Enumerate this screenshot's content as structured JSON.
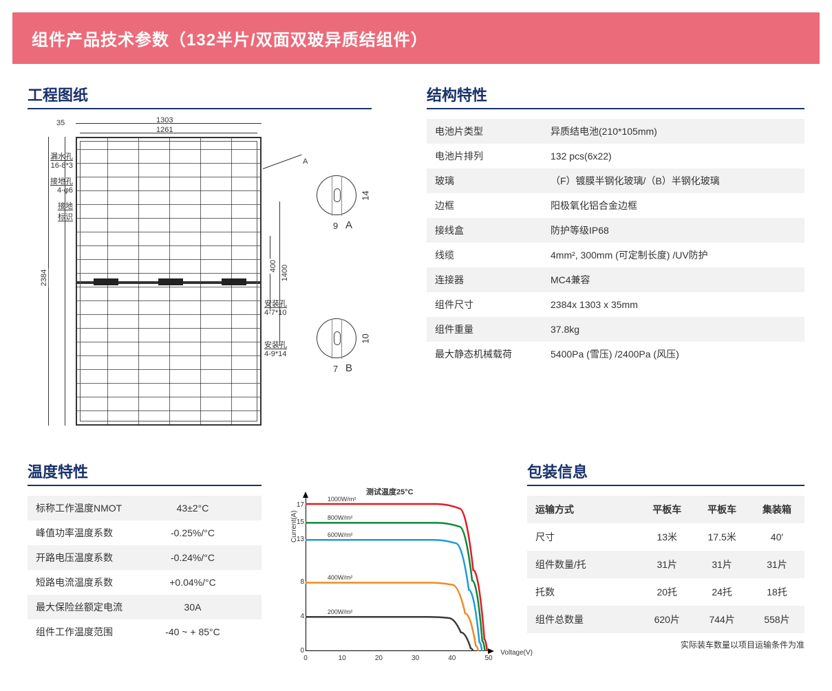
{
  "banner": {
    "title": "组件产品技术参数（132半片/双面双玻异质结组件）"
  },
  "sections": {
    "drawing": "工程图纸",
    "specs": "结构特性",
    "temp": "温度特性",
    "pack": "包装信息"
  },
  "colors": {
    "banner_bg": "#ec6b7a",
    "heading": "#18306b",
    "zebra": "#f2f2f3",
    "text": "#333333",
    "axis": "#000000"
  },
  "drawing": {
    "dims": {
      "frame_depth": "35",
      "width_outer": "1303",
      "width_inner": "1261",
      "height_outer": "2384",
      "gap_mid": "400",
      "span_mid": "1400"
    },
    "labels": {
      "drain_hole": "漏水孔",
      "drain_hole_spec": "16-8*3",
      "ground_hole": "接地孔",
      "ground_hole_spec": "4-φ6",
      "ground_mark": "接地",
      "ground_mark2": "标识",
      "mount_hole1": "安装孔",
      "mount_hole1_spec": "4-7*10",
      "mount_hole2": "安装孔",
      "mount_hole2_spec": "4-9*14"
    },
    "details": {
      "A": {
        "w": "9",
        "h": "14"
      },
      "B": {
        "w": "7",
        "h": "10"
      }
    }
  },
  "specs": [
    {
      "key": "电池片类型",
      "val": "异质结电池(210*105mm)"
    },
    {
      "key": "电池片排列",
      "val": "132 pcs(6x22)"
    },
    {
      "key": "玻璃",
      "val": "（F）镀膜半钢化玻璃/（B）半钢化玻璃"
    },
    {
      "key": "边框",
      "val": "阳极氧化铝合金边框"
    },
    {
      "key": "接线盒",
      "val": "防护等级IP68"
    },
    {
      "key": "线缆",
      "val": "4mm², 300mm (可定制长度) /UV防护"
    },
    {
      "key": "连接器",
      "val": "MC4兼容"
    },
    {
      "key": "组件尺寸",
      "val": "2384x 1303 x 35mm"
    },
    {
      "key": "组件重量",
      "val": "37.8kg"
    },
    {
      "key": "最大静态机械载荷",
      "val": "5400Pa (雪压) /2400Pa (风压)"
    }
  ],
  "temp": [
    {
      "key": "标称工作温度NMOT",
      "val": "43±2°C"
    },
    {
      "key": "峰值功率温度系数",
      "val": "-0.25%/°C"
    },
    {
      "key": "开路电压温度系数",
      "val": "-0.24%/°C"
    },
    {
      "key": "短路电流温度系数",
      "val": "+0.04%/°C"
    },
    {
      "key": "最大保险丝额定电流",
      "val": "30A"
    },
    {
      "key": "组件工作温度范围",
      "val": "-40 ~ + 85°C"
    }
  ],
  "iv_chart": {
    "title": "测试温度25°C",
    "ylabel": "Current(A)",
    "xlabel": "Voltage(V)",
    "xlim": [
      0,
      50
    ],
    "ylim": [
      0,
      18
    ],
    "xticks": [
      0,
      10,
      20,
      30,
      40,
      50
    ],
    "yticks": [
      0,
      4,
      8,
      13,
      15,
      17
    ],
    "line_width": 2.5,
    "background_color": "#ffffff",
    "axis_color": "#000000",
    "series": [
      {
        "label": "1000W/m²",
        "color": "#e11b22",
        "isc": 17.2,
        "knee_v": 42,
        "voc": 49.6
      },
      {
        "label": "800W/m²",
        "color": "#0a8a3a",
        "isc": 15.0,
        "knee_v": 42,
        "voc": 49.0
      },
      {
        "label": "600W/m²",
        "color": "#1e9bd7",
        "isc": 13.0,
        "knee_v": 41,
        "voc": 48.2
      },
      {
        "label": "400W/m²",
        "color": "#f08a1d",
        "isc": 8.0,
        "knee_v": 40,
        "voc": 47.2
      },
      {
        "label": "200W/m²",
        "color": "#3a3a3a",
        "isc": 4.0,
        "knee_v": 39,
        "voc": 45.8
      }
    ]
  },
  "packaging": {
    "headers": [
      "运输方式",
      "平板车",
      "平板车",
      "集装箱"
    ],
    "rows": [
      {
        "k": "尺寸",
        "v": [
          "13米",
          "17.5米",
          "40'"
        ]
      },
      {
        "k": "组件数量/托",
        "v": [
          "31片",
          "31片",
          "31片"
        ]
      },
      {
        "k": "托数",
        "v": [
          "20托",
          "24托",
          "18托"
        ]
      },
      {
        "k": "组件总数量",
        "v": [
          "620片",
          "744片",
          "558片"
        ]
      }
    ],
    "note": "实际装车数量以项目运输条件为准"
  }
}
